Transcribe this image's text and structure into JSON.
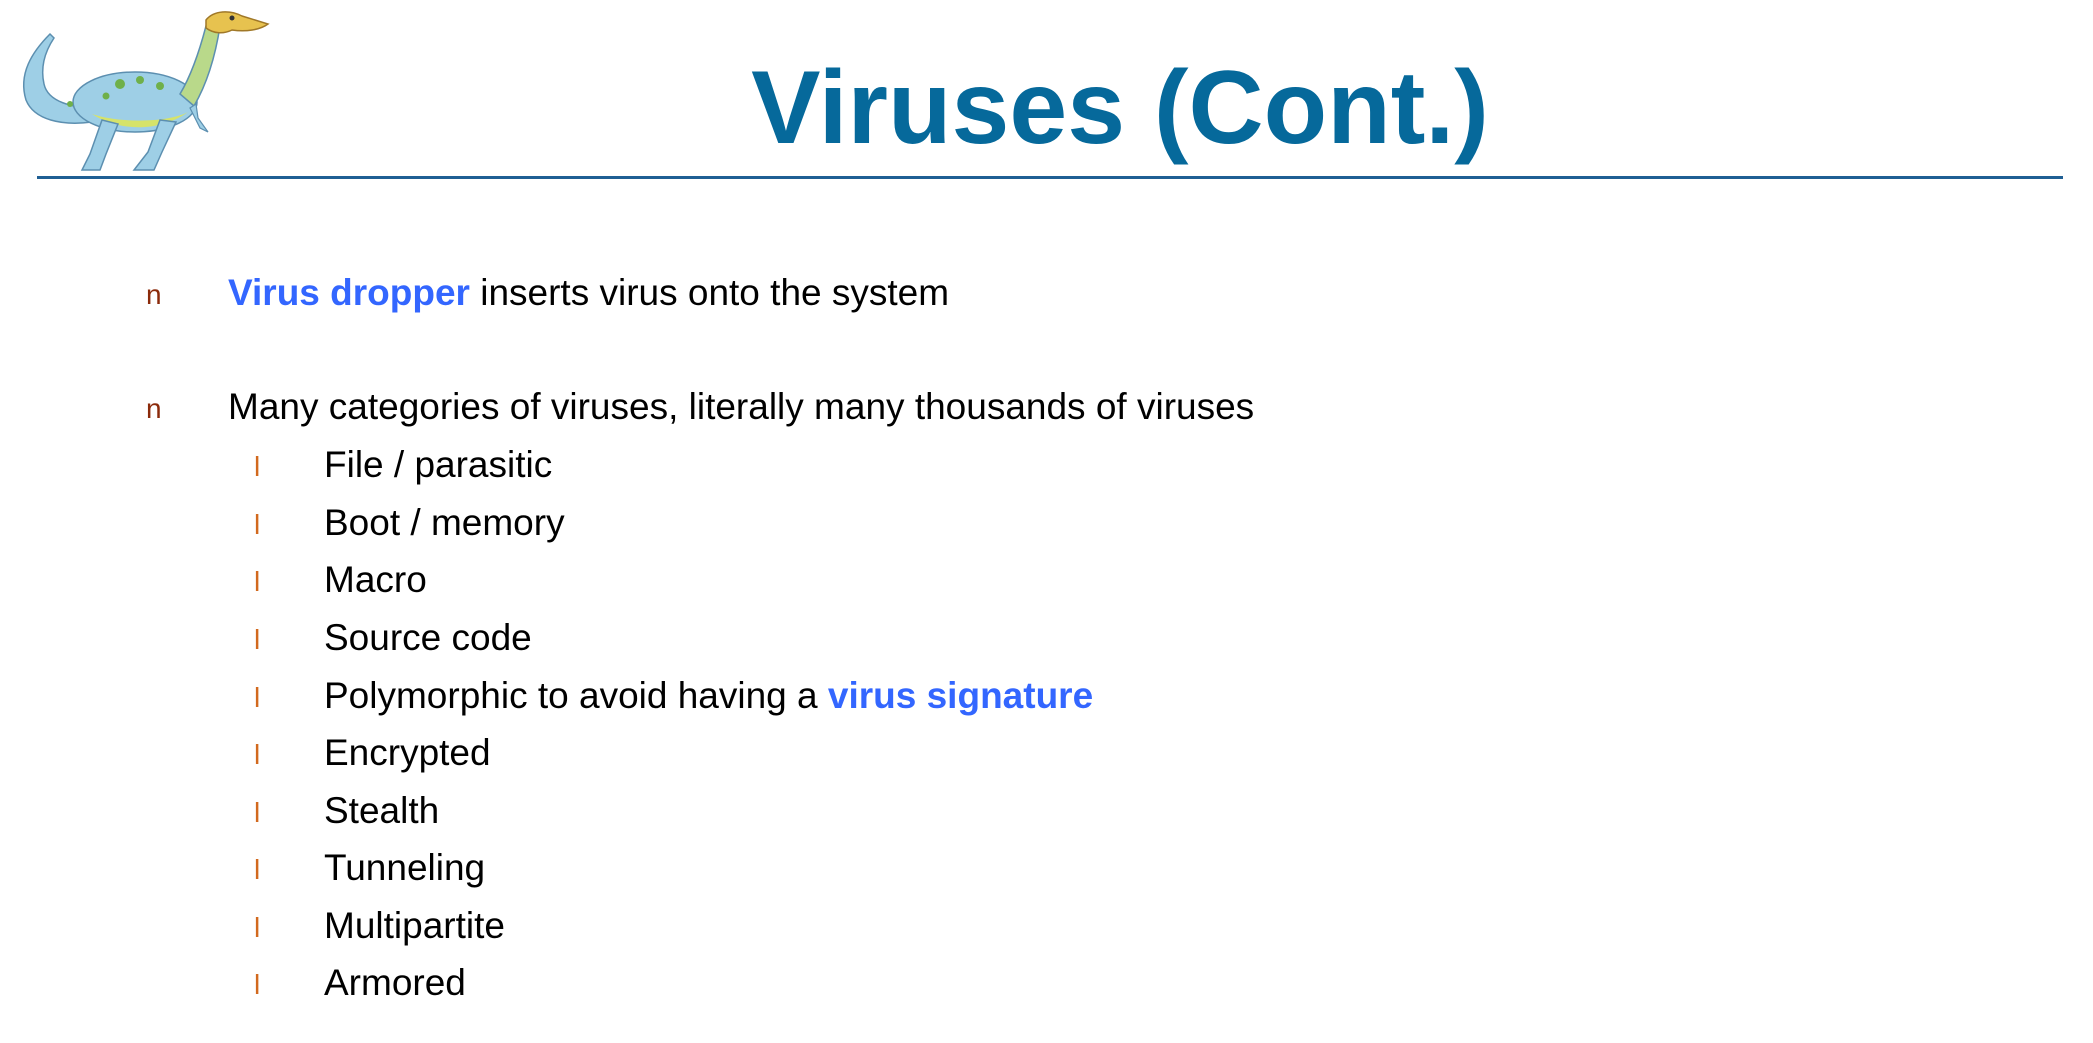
{
  "slide": {
    "title": "Viruses (Cont.)",
    "logo": {
      "icon": "dinosaur-icon",
      "colors": {
        "body": "#9ecfe6",
        "belly": "#d6e36a",
        "spots": "#6fb04a",
        "head": "#e7c24f"
      }
    },
    "colors": {
      "title": "#06699b",
      "rule": "#1f5f94",
      "highlight": "#3366ff",
      "level1_bullet": "#8b2a0a",
      "level2_bullet": "#d2691e"
    },
    "bullet_markers": {
      "level1": "n",
      "level2": "l"
    },
    "bullets": [
      {
        "highlight": "Virus dropper",
        "text": " inserts virus onto the system"
      },
      {
        "text": "Many categories of viruses, literally many thousands of viruses"
      }
    ],
    "sub_bullets": [
      {
        "text": "File / parasitic"
      },
      {
        "text": "Boot / memory"
      },
      {
        "text": "Macro"
      },
      {
        "text": "Source code"
      },
      {
        "text": "Polymorphic to avoid having a ",
        "highlight": "virus signature"
      },
      {
        "text": "Encrypted"
      },
      {
        "text": "Stealth"
      },
      {
        "text": "Tunneling"
      },
      {
        "text": "Multipartite"
      },
      {
        "text": "Armored"
      }
    ]
  }
}
